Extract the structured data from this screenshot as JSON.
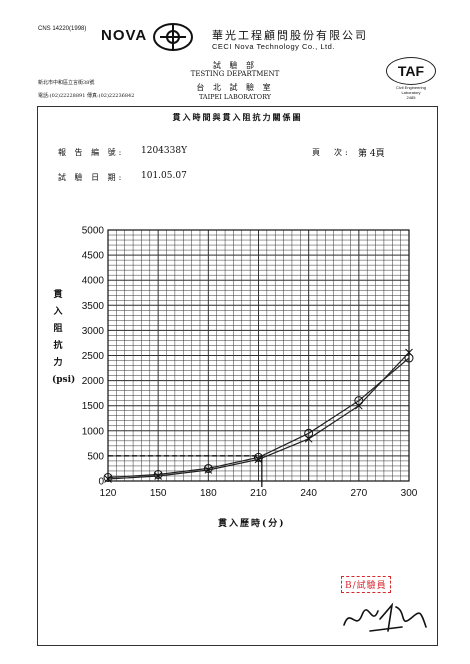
{
  "header": {
    "cns": "CNS 14220(1998)",
    "brand": "NOVA",
    "company_cn": "華光工程顧問股份有限公司",
    "company_en": "CECI Nova Technology Co., Ltd.",
    "dept_cn": "試 驗 部",
    "dept_en": "TESTING DEPARTMENT",
    "lab_cn": "台 北 試 驗 室",
    "lab_en": "TAIPEI LABORATORY",
    "address": "新北市中和區立言街38號",
    "phone": "電話:(02)22228891  傳真:(02)22236842",
    "taf_logo": "TAF",
    "taf_text": "Civil Engineering Laboratory",
    "taf_number": "2485"
  },
  "report": {
    "title": "貫入時間與貫入阻抗力關係圖",
    "report_no_label": "報 告 編 號:",
    "report_no": "1204338Y",
    "page_label": "頁　次:",
    "page_value": "第 4頁",
    "date_label": "試 驗 日 期:",
    "date_value": "101.05.07"
  },
  "chart_data": {
    "type": "line",
    "xlabel": "貫入歷時(分)",
    "ylabel": "貫入阻抗力(psi)",
    "x_ticks": [
      120,
      150,
      180,
      210,
      240,
      270,
      300
    ],
    "y_ticks": [
      0,
      500,
      1000,
      1500,
      2000,
      2500,
      3000,
      3500,
      4000,
      4500,
      5000
    ],
    "xlim": [
      120,
      300
    ],
    "ylim": [
      0,
      5000
    ],
    "grid": true,
    "reference_lines": {
      "y": 500,
      "x": 212
    },
    "series": [
      {
        "marker": "circle",
        "x": [
          120,
          150,
          180,
          210,
          240,
          270,
          300
        ],
        "y": [
          70,
          130,
          250,
          470,
          950,
          1600,
          2450
        ]
      },
      {
        "marker": "x",
        "x": [
          120,
          150,
          180,
          210,
          240,
          270,
          300
        ],
        "y": [
          40,
          100,
          220,
          430,
          840,
          1500,
          2560
        ]
      }
    ],
    "colors": {
      "line": "#222222",
      "grid": "#333333"
    }
  },
  "stamp": {
    "text": "B/試驗員"
  },
  "signature": {
    "text": ""
  }
}
